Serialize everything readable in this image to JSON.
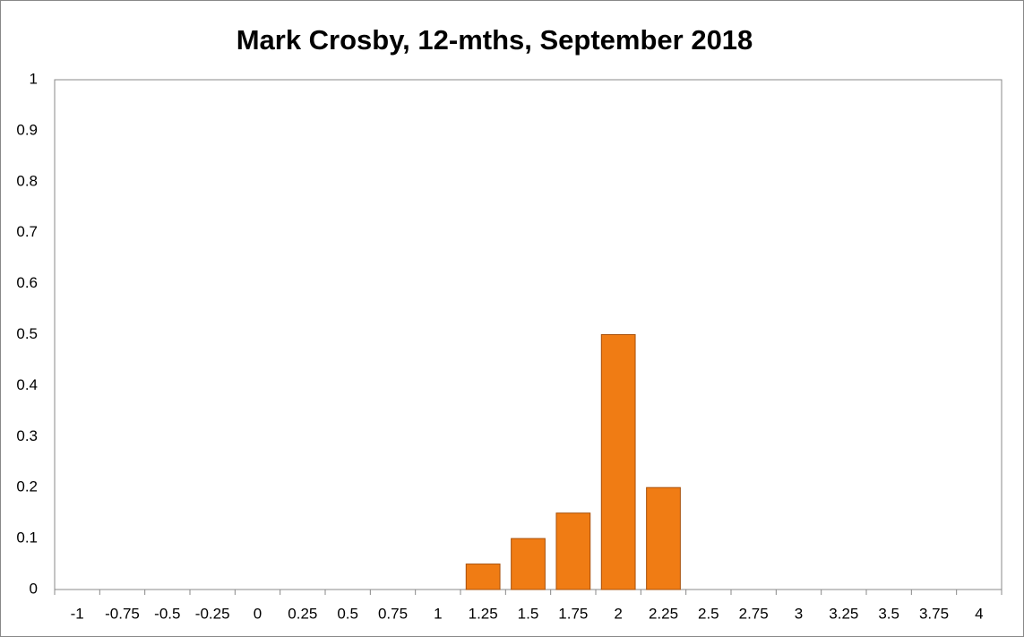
{
  "chart_data": {
    "type": "bar",
    "title": "Mark Crosby, 12-mths, September 2018",
    "categories": [
      "-1",
      "-0.75",
      "-0.5",
      "-0.25",
      "0",
      "0.25",
      "0.5",
      "0.75",
      "1",
      "1.25",
      "1.5",
      "1.75",
      "2",
      "2.25",
      "2.5",
      "2.75",
      "3",
      "3.25",
      "3.5",
      "3.75",
      "4"
    ],
    "values": [
      0,
      0,
      0,
      0,
      0,
      0,
      0,
      0,
      0,
      0.05,
      0.1,
      0.15,
      0.5,
      0.2,
      0,
      0,
      0,
      0,
      0,
      0,
      0
    ],
    "color": "#f07c14",
    "ylim": [
      0,
      1
    ],
    "yticks": [
      0,
      0.1,
      0.2,
      0.3,
      0.4,
      0.5,
      0.6,
      0.7,
      0.8,
      0.9,
      1
    ],
    "grid": false
  }
}
